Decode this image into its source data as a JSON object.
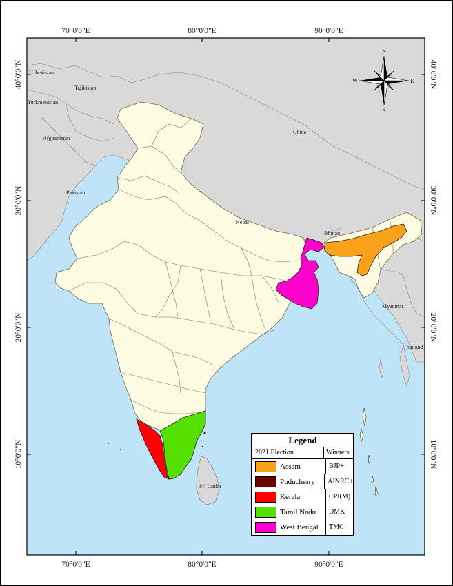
{
  "map": {
    "lon_ticks": [
      "70°0'0\"E",
      "80°0'0\"E",
      "90°0'0\"E"
    ],
    "lat_ticks": [
      "40°0'0\"N",
      "30°0'0\"N",
      "20°0'0\"N",
      "10°0'0\"N"
    ],
    "countries": {
      "uzbekistan": "Uzbekistan",
      "tajikistan": "Tajikistan",
      "turkmenistan": "Turkmenistan",
      "afghanistan": "Afghanistan",
      "pakistan": "Pakistan",
      "nepal": "Nepal",
      "china": "China",
      "bhutan": "Bhutan",
      "myanmar": "Myanmar",
      "thailand": "Thailand",
      "sri_lanka": "Sri Lanka"
    },
    "compass": {
      "n": "N",
      "s": "S",
      "e": "E",
      "w": "W"
    },
    "colors": {
      "sea": "#bfe3f7",
      "land": "#d9d9d9",
      "india": "#fdfbe1",
      "assam": "#f9a11b",
      "puducherry": "#6b0000",
      "kerala": "#ff0000",
      "tamil_nadu": "#55e000",
      "west_bengal": "#ff00cc"
    }
  },
  "legend": {
    "title": "Legend",
    "col_election": "2021 Election",
    "col_winners": "Winners",
    "rows": [
      {
        "state": "Assam",
        "winner": "BJP+",
        "color": "#f9a11b"
      },
      {
        "state": "Puducherry",
        "winner": "AINRC+",
        "color": "#6b0000"
      },
      {
        "state": "Kerala",
        "winner": "CPI(M)",
        "color": "#ff0000"
      },
      {
        "state": "Tamil Nadu",
        "winner": "DMK",
        "color": "#55e000"
      },
      {
        "state": "West Bengal",
        "winner": "TMC",
        "color": "#ff00cc"
      }
    ]
  }
}
